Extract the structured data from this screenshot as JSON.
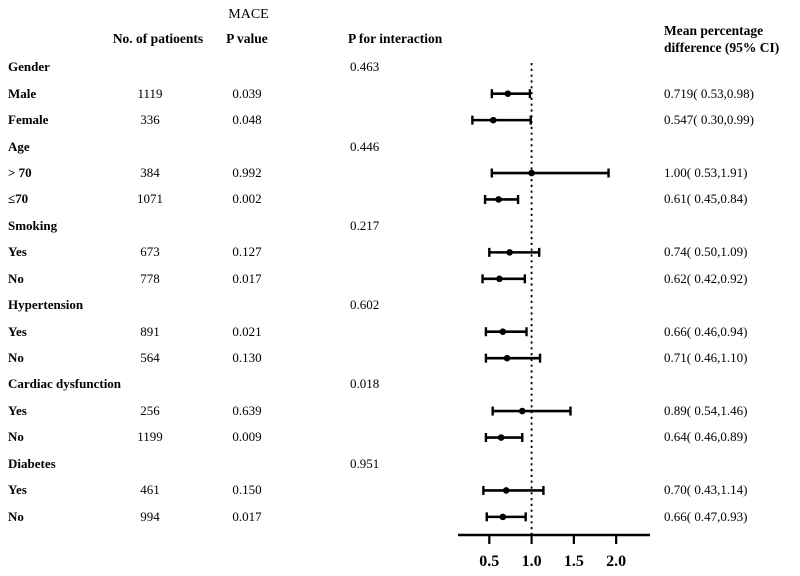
{
  "figure": {
    "title": "MACE",
    "columns": {
      "patients": "No. of patioents",
      "p_value": "P value",
      "p_interaction": "P for interaction",
      "effect": "Mean percentage difference (95% CI)"
    },
    "colors": {
      "ink": "#000000",
      "background": "#ffffff"
    }
  },
  "chart_data": {
    "type": "forest",
    "title": "MACE",
    "xlabel": "",
    "legend": "none",
    "axis": {
      "min": 0.13,
      "max": 2.4,
      "ticks": [
        0.5,
        1.0,
        1.5,
        2.0
      ],
      "tick_labels": [
        "0.5",
        "1.0",
        "1.5",
        "2.0"
      ],
      "ref_line": 1.0
    },
    "rows": [
      {
        "kind": "group",
        "label": "Gender",
        "p_interaction": "0.463"
      },
      {
        "kind": "item",
        "label": "Male",
        "n": "1119",
        "p": "0.039",
        "est": 0.719,
        "lo": 0.53,
        "hi": 0.98,
        "ci_text": "0.719( 0.53,0.98)"
      },
      {
        "kind": "item",
        "label": "Female",
        "n": "336",
        "p": "0.048",
        "est": 0.547,
        "lo": 0.3,
        "hi": 0.99,
        "ci_text": "0.547( 0.30,0.99)"
      },
      {
        "kind": "group",
        "label": "Age",
        "p_interaction": "0.446"
      },
      {
        "kind": "item",
        "label": "> 70",
        "n": "384",
        "p": "0.992",
        "est": 1.0,
        "lo": 0.53,
        "hi": 1.91,
        "ci_text": "1.00( 0.53,1.91)"
      },
      {
        "kind": "item",
        "label": "≤70",
        "n": "1071",
        "p": "0.002",
        "est": 0.61,
        "lo": 0.45,
        "hi": 0.84,
        "ci_text": "0.61( 0.45,0.84)"
      },
      {
        "kind": "group",
        "label": "Smoking",
        "p_interaction": "0.217"
      },
      {
        "kind": "item",
        "label": "Yes",
        "n": "673",
        "p": "0.127",
        "est": 0.74,
        "lo": 0.5,
        "hi": 1.09,
        "ci_text": "0.74( 0.50,1.09)"
      },
      {
        "kind": "item",
        "label": "No",
        "n": "778",
        "p": "0.017",
        "est": 0.62,
        "lo": 0.42,
        "hi": 0.92,
        "ci_text": "0.62( 0.42,0.92)"
      },
      {
        "kind": "group",
        "label": "Hypertension",
        "p_interaction": "0.602"
      },
      {
        "kind": "item",
        "label": "Yes",
        "n": "891",
        "p": "0.021",
        "est": 0.66,
        "lo": 0.46,
        "hi": 0.94,
        "ci_text": "0.66( 0.46,0.94)"
      },
      {
        "kind": "item",
        "label": "No",
        "n": "564",
        "p": "0.130",
        "est": 0.71,
        "lo": 0.46,
        "hi": 1.1,
        "ci_text": "0.71( 0.46,1.10)"
      },
      {
        "kind": "group",
        "label": "Cardiac dysfunction",
        "p_interaction": "0.018"
      },
      {
        "kind": "item",
        "label": "Yes",
        "n": "256",
        "p": "0.639",
        "est": 0.89,
        "lo": 0.54,
        "hi": 1.46,
        "ci_text": "0.89( 0.54,1.46)"
      },
      {
        "kind": "item",
        "label": "No",
        "n": "1199",
        "p": "0.009",
        "est": 0.64,
        "lo": 0.46,
        "hi": 0.89,
        "ci_text": "0.64( 0.46,0.89)"
      },
      {
        "kind": "group",
        "label": "Diabetes",
        "p_interaction": "0.951"
      },
      {
        "kind": "item",
        "label": "Yes",
        "n": "461",
        "p": "0.150",
        "est": 0.7,
        "lo": 0.43,
        "hi": 1.14,
        "ci_text": "0.70( 0.43,1.14)"
      },
      {
        "kind": "item",
        "label": "No",
        "n": "994",
        "p": "0.017",
        "est": 0.66,
        "lo": 0.47,
        "hi": 0.93,
        "ci_text": "0.66( 0.47,0.93)"
      }
    ]
  }
}
